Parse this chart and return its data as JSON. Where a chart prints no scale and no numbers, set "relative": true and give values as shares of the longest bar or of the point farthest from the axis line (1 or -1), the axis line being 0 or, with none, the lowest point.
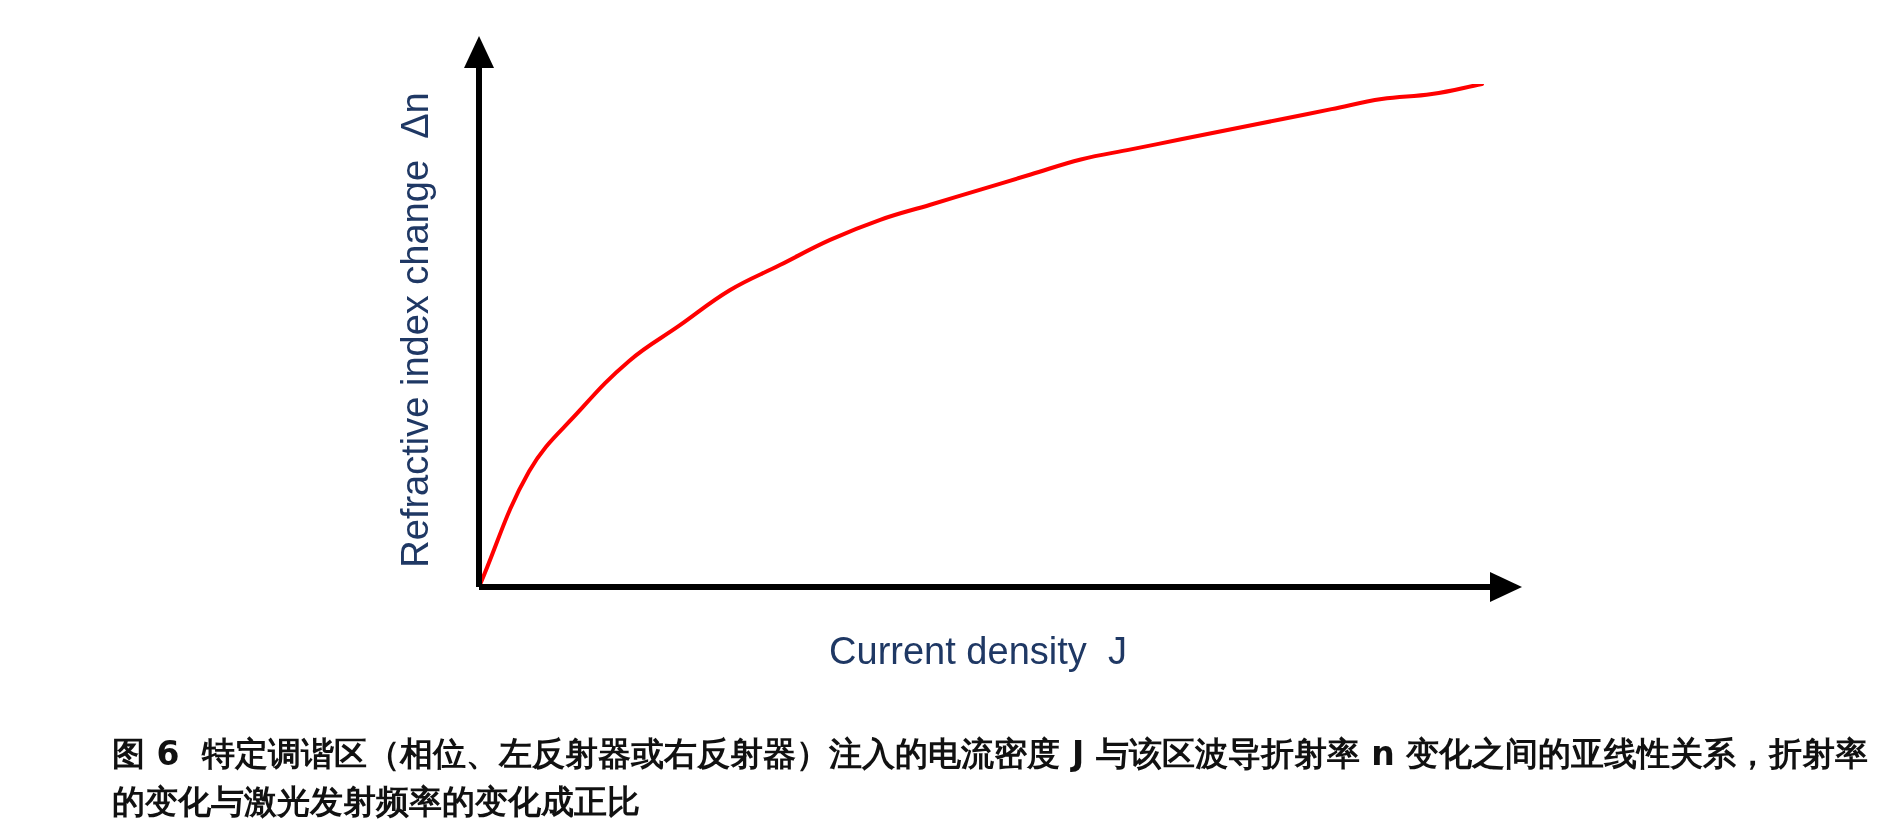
{
  "chart_data": {
    "type": "line",
    "relative": true,
    "xlabel": "Current density  J",
    "ylabel": "Refractive index change  Δn",
    "marker": "none",
    "line_style": "solid",
    "legend": false,
    "categories": [
      null,
      null,
      null,
      null,
      null,
      null,
      null,
      null,
      null,
      null,
      null,
      null,
      null,
      null,
      null,
      null,
      null,
      null,
      null,
      null,
      null
    ],
    "series": [
      {
        "color": "#ff0000",
        "values": [
          0,
          0.23,
          0.35,
          0.45,
          0.52,
          0.59,
          0.64,
          0.69,
          0.73,
          0.76,
          0.79,
          0.82,
          0.85,
          0.87,
          0.89,
          0.91,
          0.93,
          0.95,
          0.97,
          0.98,
          1
        ]
      }
    ],
    "annotations": [
      "图 6  特定调谐区（相位、左反射器或右反射器）注入的电流密度 J 与该区波导折射率 n 变化之间的亚线性关系，折射率的变化与激光发射频率的变化成正比"
    ]
  }
}
